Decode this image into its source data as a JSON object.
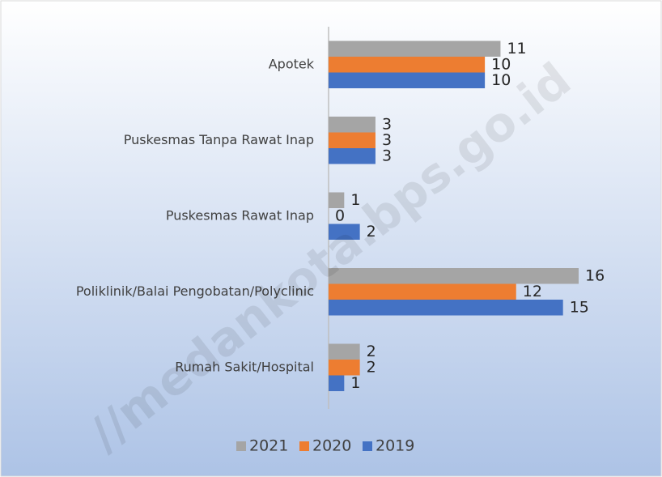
{
  "chart_data": {
    "type": "bar",
    "orientation": "horizontal",
    "watermark": "//medankota.bps.go.id",
    "categories": [
      "Apotek",
      "Puskesmas Tanpa Rawat Inap",
      "Puskesmas  Rawat Inap",
      "Poliklinik/Balai Pengobatan/Polyclinic",
      "Rumah Sakit/Hospital"
    ],
    "series": [
      {
        "name": "2021",
        "color": "#a5a5a5",
        "values": [
          11,
          3,
          1,
          16,
          2
        ]
      },
      {
        "name": "2020",
        "color": "#ed7d31",
        "values": [
          10,
          3,
          0,
          12,
          2
        ]
      },
      {
        "name": "2019",
        "color": "#4472c4",
        "values": [
          10,
          3,
          2,
          15,
          1
        ]
      }
    ],
    "legend": "bottom"
  }
}
